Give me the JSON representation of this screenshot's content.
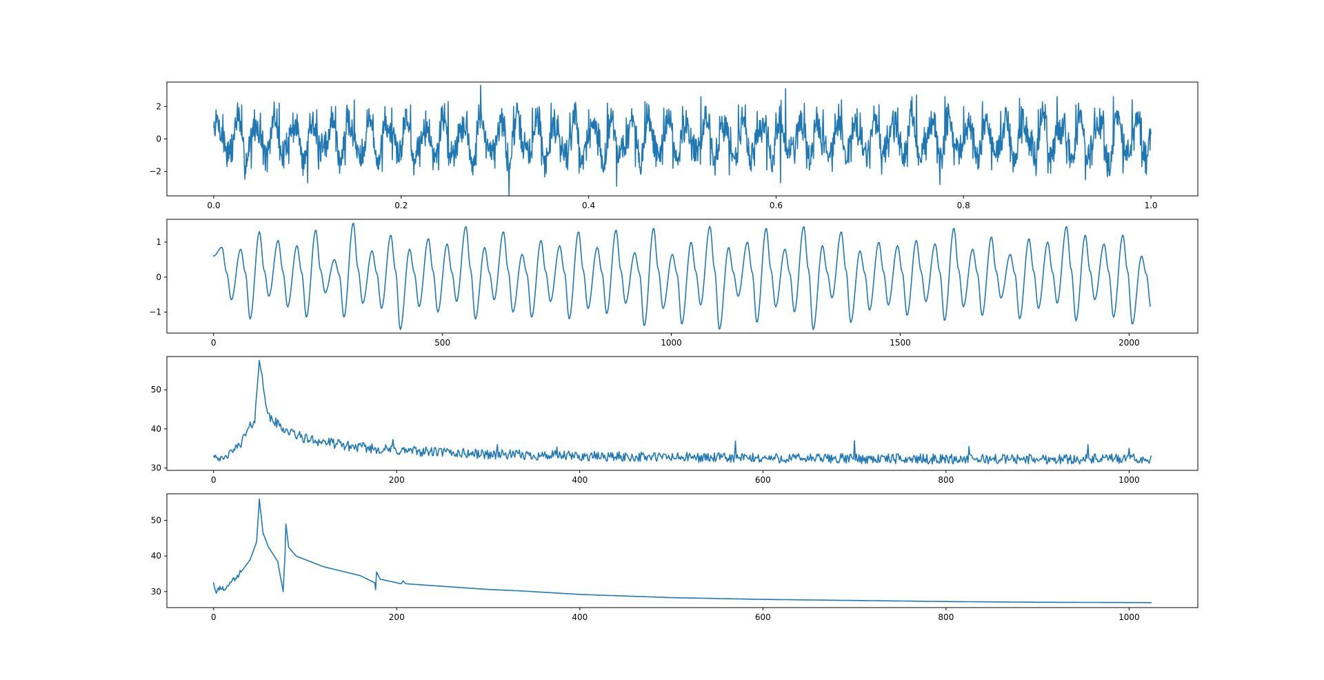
{
  "line_color": "#1f77b4",
  "chart_data": [
    {
      "type": "line",
      "title": "",
      "xlabel": "",
      "ylabel": "",
      "xlim": [
        -0.05,
        1.05
      ],
      "ylim": [
        -3.5,
        3.5
      ],
      "grid": false,
      "xticks": [
        0.0,
        0.2,
        0.4,
        0.6,
        0.8,
        1.0
      ],
      "xtick_labels": [
        "0.0",
        "0.2",
        "0.4",
        "0.6",
        "0.8",
        "1.0"
      ],
      "yticks": [
        -2,
        0,
        2
      ],
      "ytick_labels": [
        "−2",
        "0",
        "2"
      ],
      "series": [
        {
          "description": "noisy periodic signal, ~50 cycles over 2048 samples plus random noise",
          "x": [
            0.0,
            0.01,
            0.02,
            0.03,
            0.04,
            0.05,
            0.06,
            0.07,
            0.08,
            0.09,
            0.1,
            0.11,
            0.12,
            0.13,
            0.14,
            0.15,
            0.16,
            0.17,
            0.18,
            0.19,
            0.2,
            0.21,
            0.22,
            0.23,
            0.24,
            0.25,
            0.26,
            0.27,
            0.28,
            0.285,
            0.29,
            0.3,
            0.31,
            0.315,
            0.32,
            0.33,
            0.34,
            0.35,
            0.36,
            0.37,
            0.38,
            0.39,
            0.4,
            0.41,
            0.42,
            0.43,
            0.44,
            0.45,
            0.46,
            0.47,
            0.48,
            0.49,
            0.5,
            0.51,
            0.52,
            0.53,
            0.54,
            0.55,
            0.56,
            0.57,
            0.58,
            0.59,
            0.6,
            0.605,
            0.61,
            0.62,
            0.63,
            0.64,
            0.65,
            0.66,
            0.67,
            0.68,
            0.69,
            0.7,
            0.71,
            0.72,
            0.73,
            0.74,
            0.75,
            0.76,
            0.77,
            0.775,
            0.78,
            0.79,
            0.8,
            0.81,
            0.82,
            0.83,
            0.84,
            0.85,
            0.86,
            0.87,
            0.88,
            0.89,
            0.9,
            0.91,
            0.92,
            0.93,
            0.94,
            0.95,
            0.96,
            0.97,
            0.98,
            0.99,
            1.0
          ],
          "y": [
            0.7,
            1.5,
            -1.2,
            2.1,
            -1.8,
            1.6,
            -0.9,
            2.2,
            -1.5,
            1.0,
            -2.7,
            1.8,
            -1.1,
            2.0,
            -1.6,
            2.4,
            -0.8,
            1.5,
            -2.0,
            1.9,
            -1.3,
            2.1,
            -1.7,
            1.2,
            -1.9,
            2.3,
            -1.0,
            1.7,
            -1.6,
            3.3,
            0.5,
            -1.8,
            1.4,
            -3.5,
            2.0,
            -1.2,
            1.9,
            -1.6,
            2.2,
            -1.4,
            1.6,
            -2.1,
            1.8,
            -1.0,
            2.2,
            -2.9,
            1.3,
            -1.7,
            2.3,
            -1.1,
            1.9,
            -1.8,
            2.0,
            -1.3,
            2.6,
            -1.6,
            1.4,
            -2.2,
            2.1,
            -1.0,
            1.7,
            -1.9,
            1.6,
            -2.7,
            3.1,
            -1.5,
            2.2,
            -1.2,
            1.8,
            -2.0,
            2.4,
            -1.4,
            1.6,
            -1.8,
            2.1,
            -1.1,
            1.9,
            -1.7,
            2.7,
            -1.3,
            1.5,
            -2.8,
            2.6,
            -1.6,
            2.0,
            -1.2,
            2.3,
            -1.9,
            1.7,
            -1.4,
            2.5,
            -1.0,
            1.8,
            -2.1,
            2.6,
            -1.5,
            2.1,
            -2.5,
            1.9,
            -1.3,
            2.6,
            -2.1,
            2.4,
            -1.7,
            0.3
          ]
        }
      ]
    },
    {
      "type": "line",
      "title": "",
      "xlabel": "",
      "ylabel": "",
      "xlim": [
        -102,
        2150
      ],
      "ylim": [
        -1.6,
        1.65
      ],
      "grid": false,
      "xticks": [
        0,
        500,
        1000,
        1500,
        2000
      ],
      "xtick_labels": [
        "0",
        "500",
        "1000",
        "1500",
        "2000"
      ],
      "yticks": [
        -1,
        0,
        1
      ],
      "ytick_labels": [
        "−1",
        "0",
        "1"
      ],
      "series": [
        {
          "description": "smoothed (filtered) version of the signal, period ~41 samples",
          "x_max": 2047,
          "period": 41,
          "peaks": [
            0.85,
            0.8,
            1.3,
            1.05,
            0.9,
            1.35,
            0.5,
            1.55,
            0.75,
            1.2,
            0.8,
            1.1,
            0.95,
            1.45,
            0.85,
            1.3,
            0.65,
            1.05,
            0.9,
            1.3,
            0.85,
            1.35,
            0.7,
            1.4,
            0.65,
            1.0,
            1.45,
            0.85,
            1.0,
            1.4,
            0.8,
            1.45,
            0.9,
            1.3,
            0.75,
            1.0,
            0.9,
            1.05,
            0.95,
            1.4,
            0.8,
            1.15,
            0.65,
            1.1,
            1.0,
            1.45,
            1.2,
            0.95,
            1.2,
            0.6
          ],
          "troughs": [
            -0.65,
            -1.2,
            -0.55,
            -0.85,
            -1.15,
            -0.45,
            -1.15,
            -0.75,
            -0.9,
            -1.5,
            -0.85,
            -1.0,
            -0.7,
            -1.2,
            -0.65,
            -1.0,
            -1.15,
            -0.7,
            -1.2,
            -0.9,
            -1.05,
            -0.75,
            -1.4,
            -0.9,
            -1.35,
            -0.8,
            -1.5,
            -0.55,
            -1.3,
            -0.85,
            -1.0,
            -1.5,
            -0.6,
            -1.3,
            -0.95,
            -0.8,
            -1.1,
            -0.7,
            -1.25,
            -0.85,
            -1.1,
            -0.6,
            -1.2,
            -0.9,
            -0.75,
            -1.25,
            -0.65,
            -1.15,
            -1.35,
            -0.9
          ]
        }
      ]
    },
    {
      "type": "line",
      "title": "",
      "xlabel": "",
      "ylabel": "",
      "xlim": [
        -51,
        1075
      ],
      "ylim": [
        29.4,
        58.5
      ],
      "grid": false,
      "xticks": [
        0,
        200,
        400,
        600,
        800,
        1000
      ],
      "xtick_labels": [
        "0",
        "200",
        "400",
        "600",
        "800",
        "1000"
      ],
      "yticks": [
        30,
        40,
        50
      ],
      "ytick_labels": [
        "30",
        "40",
        "50"
      ],
      "series": [
        {
          "description": "magnitude spectrum (dB) of the noisy signal",
          "peak": {
            "x": 50,
            "y": 57.5
          },
          "envelope": [
            {
              "x": 0,
              "y": 33.5
            },
            {
              "x": 10,
              "y": 32.0
            },
            {
              "x": 30,
              "y": 36.5
            },
            {
              "x": 45,
              "y": 42.5
            },
            {
              "x": 50,
              "y": 57.5
            },
            {
              "x": 60,
              "y": 43.0
            },
            {
              "x": 80,
              "y": 39.5
            },
            {
              "x": 100,
              "y": 37.5
            },
            {
              "x": 150,
              "y": 35.5
            },
            {
              "x": 200,
              "y": 34.5
            },
            {
              "x": 300,
              "y": 33.5
            },
            {
              "x": 400,
              "y": 33.0
            },
            {
              "x": 600,
              "y": 32.5
            },
            {
              "x": 800,
              "y": 32.3
            },
            {
              "x": 1024,
              "y": 32.3
            }
          ],
          "noise_spikes": [
            {
              "x": 196,
              "y": 37.3
            },
            {
              "x": 310,
              "y": 36.0
            },
            {
              "x": 375,
              "y": 35.4
            },
            {
              "x": 570,
              "y": 36.9
            },
            {
              "x": 700,
              "y": 37.0
            },
            {
              "x": 825,
              "y": 35.5
            },
            {
              "x": 955,
              "y": 36.0
            },
            {
              "x": 1000,
              "y": 35.0
            }
          ]
        }
      ]
    },
    {
      "type": "line",
      "title": "",
      "xlabel": "",
      "ylabel": "",
      "xlim": [
        -51,
        1075
      ],
      "ylim": [
        25.5,
        57.5
      ],
      "grid": false,
      "xticks": [
        0,
        200,
        400,
        600,
        800,
        1000
      ],
      "xtick_labels": [
        "0",
        "200",
        "400",
        "600",
        "800",
        "1000"
      ],
      "yticks": [
        30,
        40,
        50
      ],
      "ytick_labels": [
        "30",
        "40",
        "50"
      ],
      "series": [
        {
          "description": "magnitude spectrum (dB) of the smoothed signal",
          "points": [
            {
              "x": 0,
              "y": 32.5
            },
            {
              "x": 3,
              "y": 29.5
            },
            {
              "x": 7,
              "y": 31.5
            },
            {
              "x": 12,
              "y": 30.5
            },
            {
              "x": 20,
              "y": 33.0
            },
            {
              "x": 30,
              "y": 35.5
            },
            {
              "x": 40,
              "y": 39.0
            },
            {
              "x": 47,
              "y": 44.0
            },
            {
              "x": 50,
              "y": 56.0
            },
            {
              "x": 54,
              "y": 46.5
            },
            {
              "x": 60,
              "y": 42.5
            },
            {
              "x": 70,
              "y": 38.5
            },
            {
              "x": 76,
              "y": 30.0
            },
            {
              "x": 78,
              "y": 40.0
            },
            {
              "x": 79,
              "y": 49.0
            },
            {
              "x": 82,
              "y": 42.5
            },
            {
              "x": 90,
              "y": 40.0
            },
            {
              "x": 120,
              "y": 37.0
            },
            {
              "x": 160,
              "y": 34.5
            },
            {
              "x": 176,
              "y": 32.5
            },
            {
              "x": 177,
              "y": 30.5
            },
            {
              "x": 178,
              "y": 35.5
            },
            {
              "x": 182,
              "y": 33.5
            },
            {
              "x": 205,
              "y": 32.2
            },
            {
              "x": 207,
              "y": 33.0
            },
            {
              "x": 210,
              "y": 32.2
            },
            {
              "x": 300,
              "y": 30.6
            },
            {
              "x": 335,
              "y": 30.2
            },
            {
              "x": 400,
              "y": 29.2
            },
            {
              "x": 500,
              "y": 28.3
            },
            {
              "x": 600,
              "y": 27.8
            },
            {
              "x": 700,
              "y": 27.5
            },
            {
              "x": 800,
              "y": 27.2
            },
            {
              "x": 900,
              "y": 27.0
            },
            {
              "x": 1024,
              "y": 26.9
            }
          ]
        }
      ]
    }
  ]
}
